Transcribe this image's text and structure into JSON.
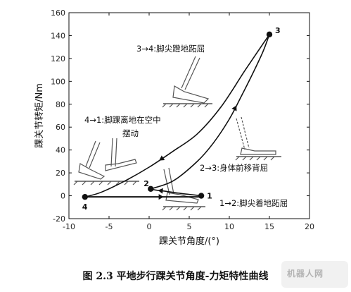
{
  "chart_data": {
    "type": "line",
    "title": "",
    "xlabel": "踝关节角度/(°)",
    "ylabel": "踝关节转矩/Nm",
    "xlim": [
      -10,
      20
    ],
    "ylim": [
      -20,
      160
    ],
    "xticks": [
      -10,
      -5,
      0,
      5,
      10,
      15,
      20
    ],
    "yticks": [
      -20,
      0,
      20,
      40,
      60,
      80,
      100,
      120,
      140,
      160
    ],
    "grid": false,
    "legend": "none",
    "points": [
      {
        "id": "1",
        "x": 6.5,
        "y": 0
      },
      {
        "id": "2",
        "x": 0.2,
        "y": 6
      },
      {
        "id": "3",
        "x": 15,
        "y": 141
      },
      {
        "id": "4",
        "x": -8,
        "y": -1
      }
    ],
    "series": [
      {
        "id": "s41",
        "x": [
          -8,
          -4,
          0,
          3,
          6.5
        ],
        "y": [
          -1,
          -1,
          -1,
          -1,
          -1
        ]
      },
      {
        "id": "s12",
        "x": [
          6.5,
          4,
          2,
          0.8,
          0.2
        ],
        "y": [
          0,
          2,
          4,
          5,
          6
        ]
      },
      {
        "id": "s23",
        "x": [
          0.2,
          3,
          6,
          8,
          10,
          11.5,
          13,
          14.2,
          15
        ],
        "y": [
          6,
          13,
          30,
          46,
          67,
          87,
          108,
          126,
          141
        ]
      },
      {
        "id": "s34",
        "x": [
          15,
          12,
          9,
          6,
          3,
          0,
          -3,
          -6,
          -8
        ],
        "y": [
          141,
          110,
          78,
          54,
          39,
          25,
          13,
          3,
          -1
        ]
      }
    ],
    "annotations": [
      {
        "text": "3→4:脚尖蹬地跖屈"
      },
      {
        "text": "4→1:脚踝离地在空中"
      },
      {
        "text": "摆动"
      },
      {
        "text": "2→3:身体前移背屈"
      },
      {
        "text": "1→2:脚尖着地跖屈"
      }
    ]
  },
  "caption": "图 2.3    平地步行踝关节角度-力矩特性曲线",
  "watermark": "机器人网"
}
